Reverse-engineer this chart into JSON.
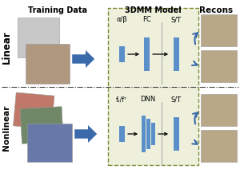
{
  "title_training": "Training Data",
  "title_3dmm": "3DMM Model",
  "title_recons": "Recons",
  "label_linear": "Linear",
  "label_nonlinear": "Nonlinear",
  "linear_labels": [
    "α/β",
    "FC",
    "S/T"
  ],
  "nonlinear_labels": [
    "fₛ/fᵀ",
    "DNN",
    "S/T"
  ],
  "bg_color": "#eef0dc",
  "bar_color": "#5b8fc9",
  "arrow_color": "#3a6aaa",
  "text_color": "#000000",
  "dashed_box_color": "#7a8a30",
  "face_3d_color": "#c8c8c8",
  "face_photo_color": "#b09880",
  "face_nl1_color": "#c07868",
  "face_nl2_color": "#708868",
  "face_nl3_color": "#6878a8",
  "recon_color": "#b8a888",
  "sep_color": "#888888",
  "divider_color": "#444444",
  "figsize": [
    3.0,
    2.17
  ],
  "dpi": 100
}
